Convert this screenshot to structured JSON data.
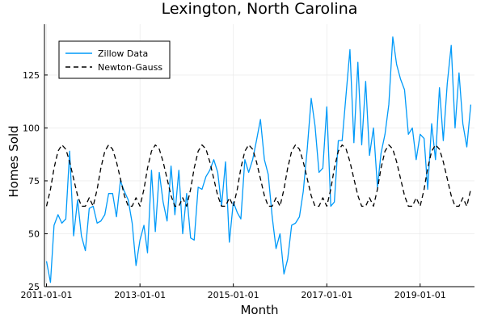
{
  "chart_data": {
    "type": "line",
    "title": "Lexington, North Carolina",
    "xlabel": "Month",
    "ylabel": "Homes Sold",
    "x_ticks": [
      "2011-01-01",
      "2013-01-01",
      "2015-01-01",
      "2017-01-01",
      "2019-01-01"
    ],
    "y_ticks": [
      25,
      50,
      75,
      100,
      125
    ],
    "xlim": [
      "2010-12-16",
      "2020-03-01"
    ],
    "ylim": [
      25,
      149
    ],
    "grid": true,
    "legend_position": "top-left",
    "series": [
      {
        "name": "Zillow Data",
        "color": "#009af9",
        "style": "solid",
        "start": "2011-01",
        "values": [
          37,
          27,
          54,
          59,
          55,
          57,
          89,
          49,
          66,
          49,
          42,
          62,
          63,
          55,
          56,
          59,
          69,
          69,
          58,
          75,
          70,
          66,
          55,
          35,
          47,
          54,
          41,
          80,
          51,
          79,
          65,
          56,
          82,
          59,
          80,
          50,
          69,
          48,
          47,
          72,
          71,
          77,
          80,
          85,
          79,
          63,
          84,
          46,
          65,
          60,
          57,
          85,
          79,
          85,
          94,
          104,
          85,
          78,
          58,
          43,
          50,
          31,
          38,
          54,
          55,
          58,
          70,
          90,
          114,
          101,
          79,
          81,
          110,
          63,
          65,
          94,
          94,
          116,
          137,
          93,
          131,
          92,
          122,
          87,
          100,
          72,
          88,
          97,
          111,
          143,
          130,
          123,
          118,
          97,
          100,
          85,
          97,
          95,
          71,
          102,
          85,
          119,
          94,
          121,
          139,
          100,
          126,
          102,
          91,
          111
        ]
      },
      {
        "name": "Newton-Gauss",
        "color": "#000000",
        "style": "dashed",
        "start": "2011-01",
        "period": 12,
        "values": [
          63,
          71,
          81,
          89,
          92,
          90,
          84,
          76,
          68,
          63,
          63,
          67
        ]
      }
    ]
  }
}
